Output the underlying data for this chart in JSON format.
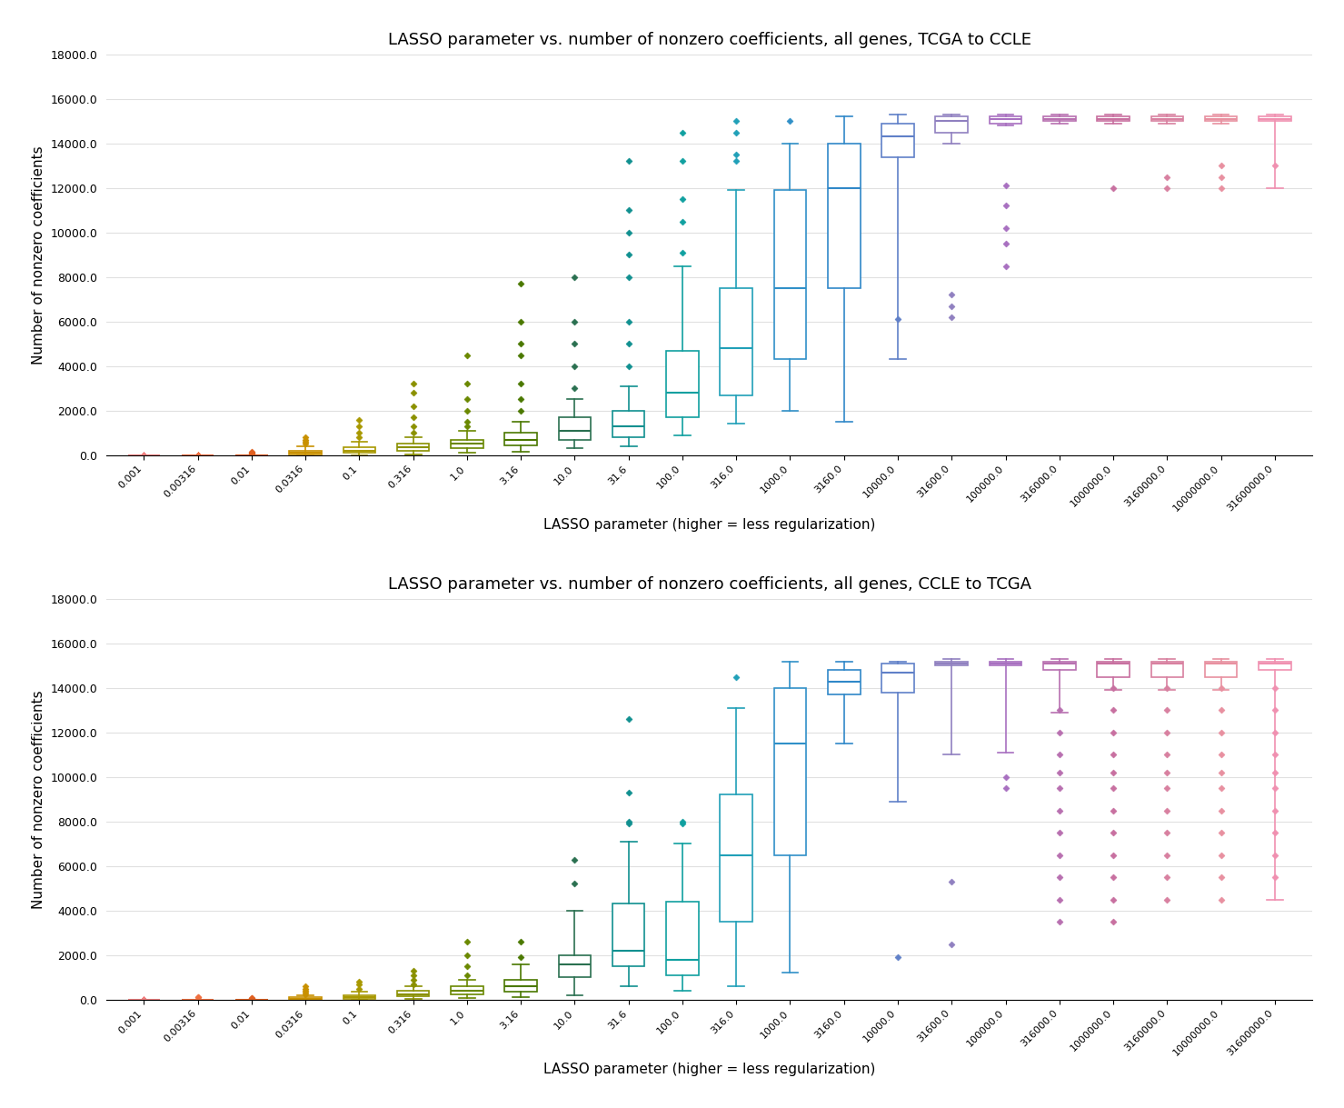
{
  "title_top": "LASSO parameter vs. number of nonzero coefficients, all genes, TCGA to CCLE",
  "title_bottom": "LASSO parameter vs. number of nonzero coefficients, all genes, CCLE to TCGA",
  "xlabel": "LASSO parameter (higher = less regularization)",
  "ylabel": "Number of nonzero coefficients",
  "x_labels": [
    "0.001",
    "0.00316",
    "0.01",
    "0.0316",
    "0.1",
    "0.316",
    "1.0",
    "3.16",
    "10.0",
    "31.6",
    "100.0",
    "316.0",
    "1000.0",
    "3160.0",
    "10000.0",
    "31600.0",
    "100000.0",
    "316000.0",
    "1000000.0",
    "3160000.0",
    "10000000.0",
    "31600000.0"
  ],
  "ylim": [
    0,
    18000
  ],
  "yticks": [
    0,
    2000,
    4000,
    6000,
    8000,
    10000,
    12000,
    14000,
    16000,
    18000
  ],
  "ytick_labels": [
    "0.0",
    "2000.0",
    "4000.0",
    "6000.0",
    "8000.0",
    "10000.0",
    "12000.0",
    "14000.0",
    "16000.0",
    "18000.0"
  ],
  "colors": [
    "#F08080",
    "#F07040",
    "#E06020",
    "#D09000",
    "#B09800",
    "#909000",
    "#708800",
    "#507800",
    "#307050",
    "#109090",
    "#10A0A0",
    "#10A0B0",
    "#3090C0",
    "#3080C0",
    "#6080C0",
    "#9080C0",
    "#A870C0",
    "#B870B0",
    "#C870A0",
    "#D880A0",
    "#E890A0",
    "#F090B0"
  ],
  "figsize": [
    14.79,
    12.19
  ],
  "dpi": 100,
  "top_stats": [
    {
      "med": 0,
      "q1": 0,
      "q3": 0,
      "wlo": 0,
      "whi": 0,
      "fliers": [
        0,
        0,
        0,
        0,
        0,
        0,
        0,
        0,
        0,
        0,
        0,
        0,
        0,
        0,
        0,
        0,
        0,
        0,
        0,
        0,
        0,
        0,
        0,
        0,
        0,
        0,
        0,
        0,
        0,
        0,
        0,
        0,
        0,
        0,
        0,
        0,
        0,
        0,
        0,
        0,
        0,
        0,
        0,
        0,
        0,
        0,
        0,
        0,
        0,
        0,
        0,
        0,
        0,
        0,
        0,
        0,
        0,
        0,
        0,
        0,
        0,
        0,
        0,
        0,
        0,
        0,
        0,
        0,
        0,
        0,
        0
      ]
    },
    {
      "med": 0,
      "q1": 0,
      "q3": 0,
      "wlo": 0,
      "whi": 0,
      "fliers": [
        0,
        0,
        0,
        0,
        0,
        0,
        0,
        0,
        0,
        0,
        0,
        0,
        0,
        0,
        0,
        0,
        0,
        0,
        0,
        0,
        0,
        0,
        0,
        0,
        0,
        0,
        0,
        0,
        0,
        0,
        0,
        0,
        0,
        0,
        0,
        0,
        0,
        0,
        0,
        0,
        0,
        0,
        0,
        0,
        0,
        0,
        0,
        0,
        0,
        0,
        0,
        0,
        0,
        0,
        0,
        0,
        0,
        0,
        0,
        0,
        0,
        0,
        0,
        0,
        0,
        0,
        0,
        0,
        0,
        0,
        0
      ]
    },
    {
      "med": 0,
      "q1": 0,
      "q3": 0,
      "wlo": 0,
      "whi": 0,
      "fliers": [
        50,
        80,
        100,
        120,
        140
      ]
    },
    {
      "med": 100,
      "q1": 50,
      "q3": 200,
      "wlo": 0,
      "whi": 400,
      "fliers": [
        500,
        600,
        700,
        800
      ]
    },
    {
      "med": 200,
      "q1": 100,
      "q3": 350,
      "wlo": 0,
      "whi": 600,
      "fliers": [
        800,
        1000,
        1300,
        1600
      ]
    },
    {
      "med": 350,
      "q1": 200,
      "q3": 500,
      "wlo": 50,
      "whi": 800,
      "fliers": [
        1000,
        1300,
        1700,
        2200,
        2800,
        3200
      ]
    },
    {
      "med": 500,
      "q1": 300,
      "q3": 700,
      "wlo": 100,
      "whi": 1100,
      "fliers": [
        1300,
        1500,
        2000,
        2500,
        3200,
        4500
      ]
    },
    {
      "med": 700,
      "q1": 450,
      "q3": 1000,
      "wlo": 150,
      "whi": 1500,
      "fliers": [
        2000,
        2500,
        3200,
        4500,
        5000,
        6000,
        7700
      ]
    },
    {
      "med": 1100,
      "q1": 700,
      "q3": 1700,
      "wlo": 300,
      "whi": 2500,
      "fliers": [
        3000,
        4000,
        5000,
        6000,
        8000
      ]
    },
    {
      "med": 1300,
      "q1": 800,
      "q3": 2000,
      "wlo": 400,
      "whi": 3100,
      "fliers": [
        4000,
        5000,
        6000,
        8000,
        9000,
        10000,
        11000,
        13200
      ]
    },
    {
      "med": 2800,
      "q1": 1700,
      "q3": 4700,
      "wlo": 900,
      "whi": 8500,
      "fliers": [
        9100,
        10500,
        11500,
        13200,
        14500
      ]
    },
    {
      "med": 4800,
      "q1": 2700,
      "q3": 7500,
      "wlo": 1400,
      "whi": 11900,
      "fliers": [
        13200,
        13500,
        14500,
        15000
      ]
    },
    {
      "med": 7500,
      "q1": 4300,
      "q3": 11900,
      "wlo": 2000,
      "whi": 14000,
      "fliers": [
        15000
      ]
    },
    {
      "med": 12000,
      "q1": 7500,
      "q3": 14000,
      "wlo": 1500,
      "whi": 15200,
      "fliers": []
    },
    {
      "med": 14300,
      "q1": 13400,
      "q3": 14900,
      "wlo": 4300,
      "whi": 15300,
      "fliers": [
        6100
      ]
    },
    {
      "med": 15000,
      "q1": 14500,
      "q3": 15200,
      "wlo": 14000,
      "whi": 15300,
      "fliers": [
        6200,
        6700,
        7200
      ]
    },
    {
      "med": 15100,
      "q1": 14900,
      "q3": 15200,
      "wlo": 14800,
      "whi": 15300,
      "fliers": [
        8500,
        9500,
        10200,
        11200,
        12100
      ]
    },
    {
      "med": 15100,
      "q1": 15000,
      "q3": 15200,
      "wlo": 14900,
      "whi": 15300,
      "fliers": []
    },
    {
      "med": 15100,
      "q1": 15000,
      "q3": 15200,
      "wlo": 14900,
      "whi": 15300,
      "fliers": [
        12000
      ]
    },
    {
      "med": 15100,
      "q1": 15000,
      "q3": 15200,
      "wlo": 14900,
      "whi": 15300,
      "fliers": [
        12000,
        12500
      ]
    },
    {
      "med": 15100,
      "q1": 15000,
      "q3": 15200,
      "wlo": 14900,
      "whi": 15300,
      "fliers": [
        12000,
        12500,
        13000
      ]
    },
    {
      "med": 15100,
      "q1": 15000,
      "q3": 15200,
      "wlo": 12000,
      "whi": 15300,
      "fliers": [
        13000
      ]
    }
  ],
  "bottom_stats": [
    {
      "med": 0,
      "q1": 0,
      "q3": 0,
      "wlo": 0,
      "whi": 0,
      "fliers": [
        0,
        0,
        0,
        0,
        0,
        0,
        0,
        0,
        0,
        0,
        0,
        0,
        0,
        0,
        0,
        0,
        0,
        0,
        0,
        0,
        0,
        0,
        0,
        0,
        0,
        0,
        0,
        0,
        0,
        0,
        0,
        0,
        0,
        0,
        0,
        0,
        0,
        0,
        0,
        0,
        0,
        0,
        0,
        0,
        0,
        0,
        0,
        0,
        0,
        0,
        0,
        0,
        0,
        0,
        0,
        0,
        0,
        0,
        0,
        0,
        0,
        0,
        0,
        0,
        0,
        0,
        0,
        0,
        0,
        0
      ]
    },
    {
      "med": 0,
      "q1": 0,
      "q3": 0,
      "wlo": 0,
      "whi": 0,
      "fliers": [
        100,
        120
      ]
    },
    {
      "med": 0,
      "q1": 0,
      "q3": 0,
      "wlo": 0,
      "whi": 0,
      "fliers": [
        30,
        50,
        70,
        80
      ]
    },
    {
      "med": 50,
      "q1": 0,
      "q3": 100,
      "wlo": 0,
      "whi": 200,
      "fliers": [
        250,
        300,
        400,
        500,
        600
      ]
    },
    {
      "med": 100,
      "q1": 50,
      "q3": 200,
      "wlo": 0,
      "whi": 350,
      "fliers": [
        500,
        700,
        800
      ]
    },
    {
      "med": 250,
      "q1": 150,
      "q3": 400,
      "wlo": 30,
      "whi": 600,
      "fliers": [
        700,
        900,
        1100,
        1300
      ]
    },
    {
      "med": 400,
      "q1": 250,
      "q3": 600,
      "wlo": 80,
      "whi": 900,
      "fliers": [
        1100,
        1500,
        2000,
        2600
      ]
    },
    {
      "med": 600,
      "q1": 350,
      "q3": 900,
      "wlo": 100,
      "whi": 1600,
      "fliers": [
        1900,
        2600
      ]
    },
    {
      "med": 1600,
      "q1": 1000,
      "q3": 2000,
      "wlo": 200,
      "whi": 4000,
      "fliers": [
        5200,
        6300
      ]
    },
    {
      "med": 2200,
      "q1": 1500,
      "q3": 4300,
      "wlo": 600,
      "whi": 7100,
      "fliers": [
        7900,
        8000,
        9300,
        12600
      ]
    },
    {
      "med": 1800,
      "q1": 1100,
      "q3": 4400,
      "wlo": 400,
      "whi": 7000,
      "fliers": [
        7900,
        8000
      ]
    },
    {
      "med": 6500,
      "q1": 3500,
      "q3": 9200,
      "wlo": 600,
      "whi": 13100,
      "fliers": [
        14500
      ]
    },
    {
      "med": 11500,
      "q1": 6500,
      "q3": 14000,
      "wlo": 1200,
      "whi": 15200,
      "fliers": []
    },
    {
      "med": 14300,
      "q1": 13700,
      "q3": 14800,
      "wlo": 11500,
      "whi": 15200,
      "fliers": []
    },
    {
      "med": 14700,
      "q1": 13800,
      "q3": 15100,
      "wlo": 8900,
      "whi": 15200,
      "fliers": [
        1900
      ]
    },
    {
      "med": 15100,
      "q1": 15000,
      "q3": 15200,
      "wlo": 11000,
      "whi": 15300,
      "fliers": [
        2500,
        5300
      ]
    },
    {
      "med": 15100,
      "q1": 15000,
      "q3": 15200,
      "wlo": 11100,
      "whi": 15300,
      "fliers": [
        9500,
        10000
      ]
    },
    {
      "med": 15100,
      "q1": 14800,
      "q3": 15200,
      "wlo": 12900,
      "whi": 15300,
      "fliers": [
        3500,
        4500,
        5500,
        6500,
        7500,
        8500,
        9500,
        10200,
        11000,
        12000,
        13000
      ]
    },
    {
      "med": 15100,
      "q1": 14500,
      "q3": 15200,
      "wlo": 13900,
      "whi": 15300,
      "fliers": [
        3500,
        4500,
        5500,
        6500,
        7500,
        8500,
        9500,
        10200,
        11000,
        12000,
        13000,
        14000
      ]
    },
    {
      "med": 15100,
      "q1": 14500,
      "q3": 15200,
      "wlo": 13900,
      "whi": 15300,
      "fliers": [
        4500,
        5500,
        6500,
        7500,
        8500,
        9500,
        10200,
        11000,
        12000,
        13000,
        14000
      ]
    },
    {
      "med": 15100,
      "q1": 14500,
      "q3": 15200,
      "wlo": 13900,
      "whi": 15300,
      "fliers": [
        4500,
        5500,
        6500,
        7500,
        8500,
        9500,
        10200,
        11000,
        12000,
        13000,
        14000
      ]
    },
    {
      "med": 15100,
      "q1": 14800,
      "q3": 15200,
      "wlo": 4500,
      "whi": 15300,
      "fliers": [
        5500,
        6500,
        7500,
        8500,
        9500,
        10200,
        11000,
        12000,
        13000,
        14000
      ]
    }
  ]
}
